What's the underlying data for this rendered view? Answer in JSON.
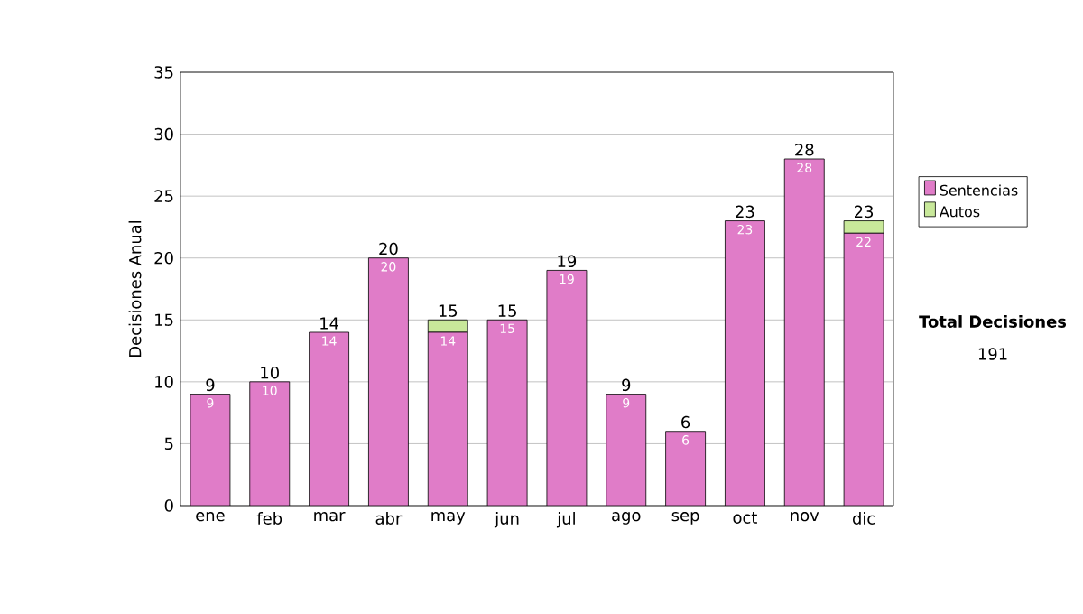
{
  "chart_data": {
    "type": "bar",
    "stacked": true,
    "ylabel": "Decisiones Anual",
    "categories": [
      "ene",
      "feb",
      "mar",
      "abr",
      "may",
      "jun",
      "jul",
      "ago",
      "sep",
      "oct",
      "nov",
      "dic"
    ],
    "series": [
      {
        "name": "Sentencias",
        "color": "#e07cc8",
        "values": [
          9,
          10,
          14,
          20,
          14,
          15,
          19,
          9,
          6,
          23,
          28,
          22
        ],
        "value_labels": [
          "9",
          "10",
          "14",
          "20",
          "14",
          "15",
          "19",
          "9",
          "6",
          "23",
          "28",
          "22"
        ]
      },
      {
        "name": "Autos",
        "color": "#c8e89a",
        "values": [
          null,
          null,
          null,
          null,
          1,
          null,
          null,
          null,
          null,
          null,
          null,
          1
        ]
      }
    ],
    "totals": [
      "9",
      "10",
      "14",
      "20",
      "15",
      "15",
      "19",
      "9",
      "6",
      "23",
      "28",
      "23"
    ],
    "ylim": [
      0,
      35
    ],
    "yticks": [
      0,
      5,
      10,
      15,
      20,
      25,
      30,
      35
    ],
    "grid": "y",
    "legend": "right",
    "annotations": [
      "Total Decisiones",
      "191"
    ]
  }
}
